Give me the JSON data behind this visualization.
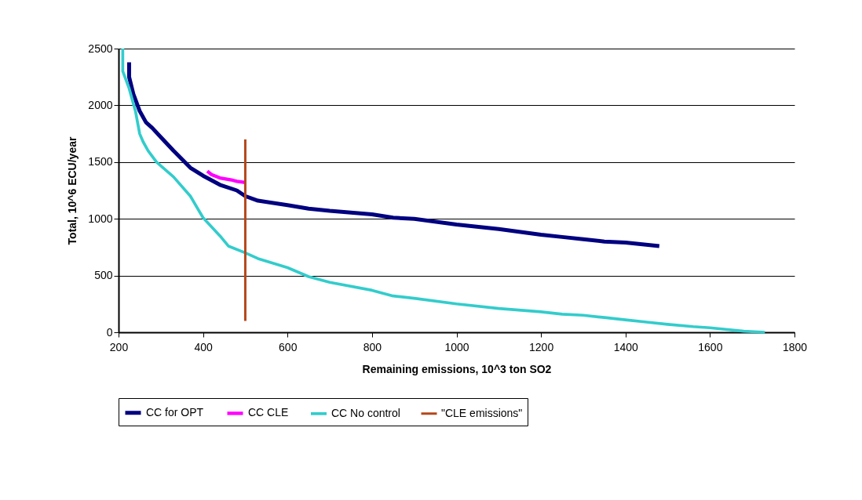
{
  "chart_data": {
    "type": "line",
    "xlabel": "Remaining emissions, 10^3 ton SO2",
    "ylabel": "Total, 10^6  ECU/year",
    "xlim": [
      200,
      1800
    ],
    "xticks": [
      200,
      400,
      600,
      800,
      1000,
      1200,
      1400,
      1600,
      1800
    ],
    "ylim": [
      0,
      2500
    ],
    "yticks": [
      0,
      500,
      1000,
      1500,
      2000,
      2500
    ],
    "grid": "y",
    "legend": "bottom",
    "marker": "none",
    "line_style": "solid",
    "series": [
      {
        "name": "CC for OPT",
        "color": "#000080",
        "x": [
          225,
          225,
          235,
          250,
          265,
          280,
          300,
          330,
          370,
          400,
          420,
          440,
          480,
          500,
          530,
          600,
          650,
          700,
          800,
          850,
          900,
          1000,
          1100,
          1200,
          1250,
          1300,
          1350,
          1400,
          1480
        ],
        "values": [
          2380,
          2250,
          2100,
          1950,
          1850,
          1800,
          1720,
          1600,
          1450,
          1380,
          1340,
          1300,
          1250,
          1200,
          1160,
          1120,
          1090,
          1070,
          1040,
          1010,
          1000,
          950,
          910,
          860,
          840,
          820,
          800,
          790,
          760
        ]
      },
      {
        "name": "CC CLE",
        "color": "#ff00ff",
        "x": [
          410,
          420,
          440,
          470,
          480,
          500
        ],
        "values": [
          1420,
          1390,
          1360,
          1340,
          1330,
          1320
        ]
      },
      {
        "name": "CC No control",
        "color": "#33cccc",
        "x": [
          210,
          210,
          225,
          240,
          250,
          258,
          270,
          290,
          330,
          370,
          400,
          440,
          460,
          500,
          530,
          600,
          650,
          700,
          800,
          850,
          900,
          1000,
          1100,
          1200,
          1250,
          1300,
          1350,
          1400,
          1450,
          1500,
          1560,
          1600,
          1680,
          1730
        ],
        "values": [
          2500,
          2300,
          2150,
          1950,
          1750,
          1680,
          1600,
          1500,
          1370,
          1200,
          1010,
          850,
          760,
          700,
          650,
          570,
          490,
          440,
          370,
          320,
          300,
          250,
          210,
          180,
          160,
          150,
          130,
          110,
          90,
          70,
          50,
          40,
          10,
          0
        ]
      },
      {
        "name": "\"CLE emissions\"",
        "color": "#b5471a",
        "x": [
          500,
          500
        ],
        "values": [
          100,
          1700
        ]
      }
    ]
  }
}
